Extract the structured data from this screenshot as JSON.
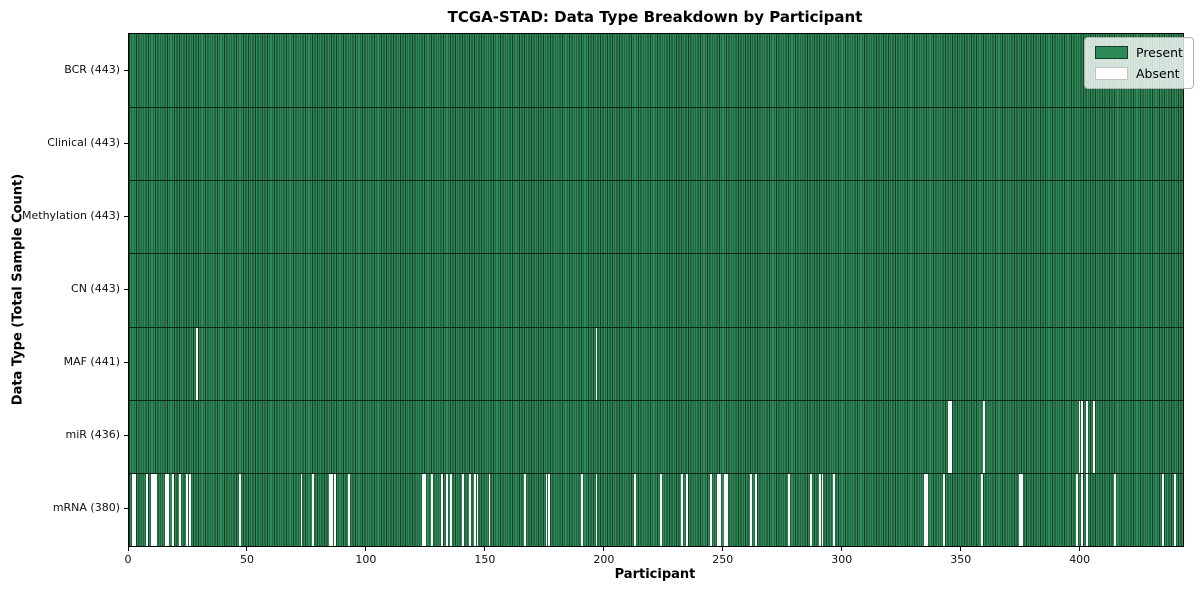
{
  "chart_data": {
    "type": "heatmap",
    "title": "TCGA-STAD: Data Type Breakdown by Participant",
    "xlabel": "Participant",
    "ylabel": "Data Type (Total Sample Count)",
    "n_participants": 443,
    "x_ticks": [
      0,
      50,
      100,
      150,
      200,
      250,
      300,
      350,
      400
    ],
    "legend": {
      "present_label": "Present",
      "absent_label": "Absent",
      "position": "upper right"
    },
    "colors": {
      "present": "#2e8b57",
      "absent": "#ffffff",
      "bar_edge": "#163f2a",
      "spine": "#000000"
    },
    "rows": [
      {
        "label": "BCR (443)",
        "name": "bcr",
        "present_count": 443,
        "absent_participants": []
      },
      {
        "label": "Clinical (443)",
        "name": "clinical",
        "present_count": 443,
        "absent_participants": []
      },
      {
        "label": "Methylation (443)",
        "name": "methylation",
        "present_count": 443,
        "absent_participants": []
      },
      {
        "label": "CN (443)",
        "name": "cn",
        "present_count": 443,
        "absent_participants": []
      },
      {
        "label": "MAF (441)",
        "name": "maf",
        "present_count": 441,
        "absent_participants": [
          28,
          196
        ]
      },
      {
        "label": "miR (436)",
        "name": "mir",
        "present_count": 436,
        "absent_participants": [
          344,
          345,
          359,
          399,
          400,
          402,
          405
        ]
      },
      {
        "label": "mRNA (380)",
        "name": "mrna",
        "present_count": 380,
        "absent_participants": [
          1,
          2,
          7,
          9,
          10,
          11,
          15,
          16,
          18,
          21,
          24,
          25,
          46,
          72,
          77,
          84,
          85,
          86,
          92,
          123,
          124,
          127,
          131,
          133,
          135,
          140,
          143,
          145,
          146,
          151,
          166,
          175,
          176,
          190,
          196,
          212,
          223,
          232,
          234,
          244,
          247,
          248,
          250,
          251,
          261,
          263,
          277,
          286,
          290,
          291,
          296,
          334,
          335,
          342,
          358,
          374,
          375,
          398,
          400,
          402,
          414,
          434,
          439
        ]
      }
    ]
  }
}
